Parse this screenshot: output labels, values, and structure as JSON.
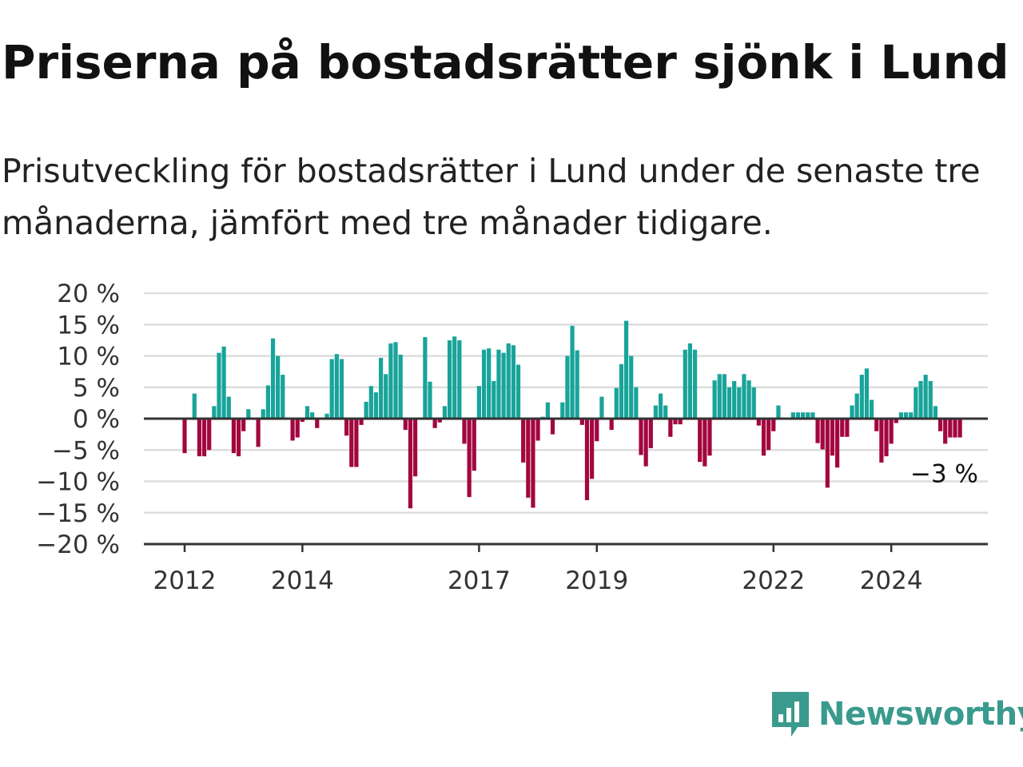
{
  "title": "Priserna på bostadsrätter sjönk i Lund",
  "subtitle": "Prisutveckling för bostadsrätter i Lund under de senaste tre månaderna, jämfört med tre månader tidigare.",
  "brand": {
    "name": "Newsworthy",
    "color": "#3a9a8e",
    "icon": "newsworthy-logo-icon"
  },
  "colors": {
    "positive": "#18a49a",
    "negative": "#a3063f",
    "grid": "#dddddd",
    "axis": "#333333"
  },
  "chart_data": {
    "type": "bar",
    "x_type": "month",
    "ylim": [
      -20,
      20
    ],
    "yticks": [
      20,
      15,
      10,
      5,
      0,
      -5,
      -10,
      -15,
      -20
    ],
    "ytick_labels": [
      "20 %",
      "15 %",
      "10 %",
      "5 %",
      "0 %",
      "−5 %",
      "−10 %",
      "−15 %",
      "−20 %"
    ],
    "xtick_labels": [
      "2012",
      "2014",
      "2017",
      "2019",
      "2022",
      "2024"
    ],
    "xtick_dates": [
      "2012-01",
      "2014-01",
      "2017-01",
      "2019-01",
      "2022-01",
      "2024-01"
    ],
    "grid": true,
    "annotation": {
      "text": "−3 %",
      "x": "2025-03",
      "value": -3
    },
    "x": [
      "2012-01",
      "2012-02",
      "2012-03",
      "2012-04",
      "2012-05",
      "2012-06",
      "2012-07",
      "2012-08",
      "2012-09",
      "2012-10",
      "2012-11",
      "2012-12",
      "2013-01",
      "2013-02",
      "2013-03",
      "2013-04",
      "2013-05",
      "2013-06",
      "2013-07",
      "2013-08",
      "2013-09",
      "2013-10",
      "2013-11",
      "2013-12",
      "2014-01",
      "2014-02",
      "2014-03",
      "2014-04",
      "2014-05",
      "2014-06",
      "2014-07",
      "2014-08",
      "2014-09",
      "2014-10",
      "2014-11",
      "2014-12",
      "2015-01",
      "2015-02",
      "2015-03",
      "2015-04",
      "2015-05",
      "2015-06",
      "2015-07",
      "2015-08",
      "2015-09",
      "2015-10",
      "2015-11",
      "2015-12",
      "2016-01",
      "2016-02",
      "2016-03",
      "2016-04",
      "2016-05",
      "2016-06",
      "2016-07",
      "2016-08",
      "2016-09",
      "2016-10",
      "2016-11",
      "2016-12",
      "2017-01",
      "2017-02",
      "2017-03",
      "2017-04",
      "2017-05",
      "2017-06",
      "2017-07",
      "2017-08",
      "2017-09",
      "2017-10",
      "2017-11",
      "2017-12",
      "2018-01",
      "2018-02",
      "2018-03",
      "2018-04",
      "2018-05",
      "2018-06",
      "2018-07",
      "2018-08",
      "2018-09",
      "2018-10",
      "2018-11",
      "2018-12",
      "2019-01",
      "2019-02",
      "2019-03",
      "2019-04",
      "2019-05",
      "2019-06",
      "2019-07",
      "2019-08",
      "2019-09",
      "2019-10",
      "2019-11",
      "2019-12",
      "2020-01",
      "2020-02",
      "2020-03",
      "2020-04",
      "2020-05",
      "2020-06",
      "2020-07",
      "2020-08",
      "2020-09",
      "2020-10",
      "2020-11",
      "2020-12",
      "2021-01",
      "2021-02",
      "2021-03",
      "2021-04",
      "2021-05",
      "2021-06",
      "2021-07",
      "2021-08",
      "2021-09",
      "2021-10",
      "2021-11",
      "2021-12",
      "2022-01",
      "2022-02",
      "2022-03",
      "2022-04",
      "2022-05",
      "2022-06",
      "2022-07",
      "2022-08",
      "2022-09",
      "2022-10",
      "2022-11",
      "2022-12",
      "2023-01",
      "2023-02",
      "2023-03",
      "2023-04",
      "2023-05",
      "2023-06",
      "2023-07",
      "2023-08",
      "2023-09",
      "2023-10",
      "2023-11",
      "2023-12",
      "2024-01",
      "2024-02",
      "2024-03",
      "2024-04",
      "2024-05",
      "2024-06",
      "2024-07",
      "2024-08",
      "2024-09",
      "2024-10",
      "2024-11",
      "2024-12",
      "2025-01",
      "2025-02",
      "2025-03"
    ],
    "values": [
      -5.5,
      0,
      4,
      -6,
      -6,
      -5,
      2,
      10.5,
      11.5,
      3.5,
      -5.5,
      -6,
      -2,
      1.5,
      0,
      -4.5,
      1.5,
      5.3,
      12.8,
      10,
      7,
      0,
      -3.5,
      -3,
      -0.5,
      2,
      1,
      -1.5,
      0,
      0.8,
      9.5,
      10.3,
      9.5,
      -2.7,
      -7.7,
      -7.7,
      -1,
      2.7,
      5.2,
      4.2,
      9.7,
      7.1,
      12,
      12.2,
      10.2,
      -1.8,
      -14.3,
      -9.2,
      0,
      13,
      5.9,
      -1.5,
      -0.6,
      2,
      12.5,
      13.1,
      12.5,
      -4,
      -12.5,
      -8.3,
      5.2,
      11,
      11.2,
      6,
      11,
      10.5,
      12,
      11.7,
      8.6,
      -7,
      -12.6,
      -14.2,
      -3.5,
      0.3,
      2.6,
      -2.5,
      0,
      2.6,
      10,
      14.8,
      10.9,
      -1,
      -13,
      -9.6,
      -3.6,
      3.5,
      0,
      -1.8,
      4.9,
      8.7,
      15.6,
      10,
      5,
      -5.8,
      -7.6,
      -4.7,
      2.1,
      4,
      2.1,
      -2.9,
      -0.9,
      -0.9,
      11,
      12,
      11,
      -6.9,
      -7.6,
      -5.9,
      6.1,
      7.1,
      7.1,
      5,
      6,
      5,
      7.1,
      6.1,
      5,
      -1.1,
      -5.9,
      -5,
      -2,
      2.1,
      0,
      0,
      1,
      1,
      1,
      1,
      1,
      -3.9,
      -4.9,
      -11,
      -5.9,
      -7.8,
      -2.9,
      -2.9,
      2.1,
      4,
      7,
      8,
      3,
      -2,
      -7,
      -6,
      -4,
      -0.7,
      1,
      1,
      1,
      5,
      6,
      7,
      6,
      2,
      -2,
      -4,
      -3,
      -3,
      -3
    ]
  }
}
